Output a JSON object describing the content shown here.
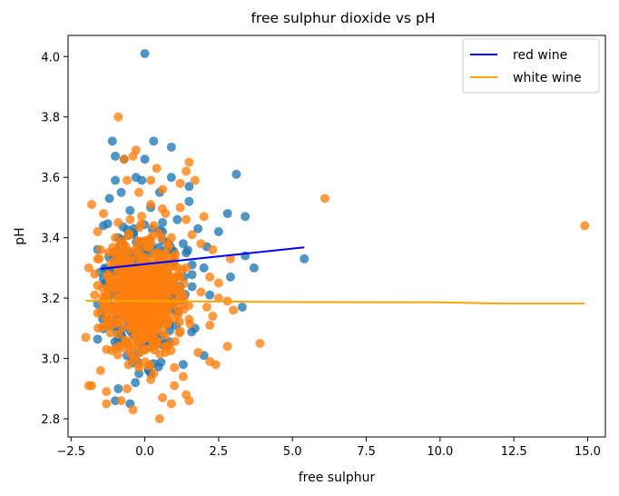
{
  "chart_data": {
    "type": "scatter",
    "title": "free sulphur dioxide vs pH",
    "xlabel": "free sulphur",
    "ylabel": "pH",
    "xlim": [
      -2.6,
      15.6
    ],
    "ylim": [
      2.74,
      4.07
    ],
    "xticks": [
      -2.5,
      0.0,
      2.5,
      5.0,
      7.5,
      10.0,
      12.5,
      15.0
    ],
    "xtick_labels": [
      "−2.5",
      "0.0",
      "2.5",
      "5.0",
      "7.5",
      "10.0",
      "12.5",
      "15.0"
    ],
    "yticks": [
      2.8,
      3.0,
      3.2,
      3.4,
      3.6,
      3.8,
      4.0
    ],
    "ytick_labels": [
      "2.8",
      "3.0",
      "3.2",
      "3.4",
      "3.6",
      "3.8",
      "4.0"
    ],
    "grid": false,
    "legend_position": "top-right",
    "scatter_series": [
      {
        "color": "#1f77b4",
        "points": [
          [
            0.0,
            4.01
          ],
          [
            0.3,
            3.72
          ],
          [
            -1.1,
            3.72
          ],
          [
            -1.0,
            3.67
          ],
          [
            -0.7,
            3.66
          ],
          [
            0.0,
            3.66
          ],
          [
            0.9,
            3.7
          ],
          [
            3.1,
            3.61
          ],
          [
            -0.3,
            3.6
          ],
          [
            -0.1,
            3.59
          ],
          [
            -1.0,
            3.59
          ],
          [
            1.5,
            3.57
          ],
          [
            0.9,
            3.6
          ],
          [
            -0.8,
            3.55
          ],
          [
            0.5,
            3.55
          ],
          [
            -1.2,
            3.53
          ],
          [
            1.5,
            3.52
          ],
          [
            0.2,
            3.5
          ],
          [
            -0.5,
            3.49
          ],
          [
            2.8,
            3.48
          ],
          [
            3.4,
            3.47
          ],
          [
            1.1,
            3.46
          ],
          [
            -1.4,
            3.44
          ],
          [
            1.8,
            3.43
          ],
          [
            0.6,
            3.42
          ],
          [
            2.5,
            3.42
          ],
          [
            -0.9,
            3.4
          ],
          [
            1.3,
            3.38
          ],
          [
            2.1,
            3.37
          ],
          [
            3.4,
            3.34
          ],
          [
            5.4,
            3.33
          ],
          [
            -0.2,
            3.33
          ],
          [
            1.6,
            3.31
          ],
          [
            2.0,
            3.3
          ],
          [
            3.7,
            3.3
          ],
          [
            2.9,
            3.27
          ],
          [
            0.8,
            3.26
          ],
          [
            -1.3,
            3.25
          ],
          [
            1.2,
            3.24
          ],
          [
            0.1,
            3.22
          ],
          [
            2.2,
            3.21
          ],
          [
            -0.6,
            3.2
          ],
          [
            3.3,
            3.17
          ],
          [
            1.0,
            3.16
          ],
          [
            -1.0,
            3.13
          ],
          [
            0.4,
            3.12
          ],
          [
            1.7,
            3.1
          ],
          [
            -0.4,
            3.08
          ],
          [
            0.7,
            3.05
          ],
          [
            2.0,
            3.01
          ],
          [
            1.3,
            2.98
          ],
          [
            -0.2,
            2.95
          ],
          [
            -0.9,
            2.9
          ],
          [
            -1.0,
            2.86
          ],
          [
            -0.5,
            2.85
          ],
          [
            0.2,
            2.95
          ],
          [
            -0.8,
            3.35
          ],
          [
            0.6,
            3.45
          ],
          [
            -0.3,
            3.28
          ],
          [
            1.4,
            3.35
          ]
        ]
      },
      {
        "color": "#ff7f0e",
        "points": [
          [
            -0.9,
            3.8
          ],
          [
            -0.3,
            3.69
          ],
          [
            -0.4,
            3.67
          ],
          [
            -0.7,
            3.66
          ],
          [
            0.4,
            3.63
          ],
          [
            1.4,
            3.62
          ],
          [
            1.5,
            3.65
          ],
          [
            0.2,
            3.59
          ],
          [
            -0.6,
            3.59
          ],
          [
            1.7,
            3.59
          ],
          [
            1.2,
            3.58
          ],
          [
            0.6,
            3.56
          ],
          [
            -0.2,
            3.55
          ],
          [
            6.1,
            3.53
          ],
          [
            -1.8,
            3.51
          ],
          [
            0.2,
            3.51
          ],
          [
            1.2,
            3.5
          ],
          [
            0.7,
            3.48
          ],
          [
            -1.4,
            3.48
          ],
          [
            2.0,
            3.47
          ],
          [
            1.4,
            3.46
          ],
          [
            -0.5,
            3.46
          ],
          [
            0.3,
            3.44
          ],
          [
            14.9,
            3.44
          ],
          [
            -1.6,
            3.42
          ],
          [
            1.6,
            3.41
          ],
          [
            0.9,
            3.4
          ],
          [
            -1.0,
            3.4
          ],
          [
            0.0,
            3.39
          ],
          [
            1.9,
            3.38
          ],
          [
            2.3,
            3.36
          ],
          [
            -1.5,
            3.36
          ],
          [
            0.4,
            3.35
          ],
          [
            2.9,
            3.33
          ],
          [
            1.0,
            3.33
          ],
          [
            -0.6,
            3.32
          ],
          [
            -1.9,
            3.3
          ],
          [
            1.4,
            3.3
          ],
          [
            -1.7,
            3.28
          ],
          [
            0.6,
            3.28
          ],
          [
            2.2,
            3.27
          ],
          [
            -1.2,
            3.26
          ],
          [
            2.5,
            3.25
          ],
          [
            0.9,
            3.24
          ],
          [
            -0.2,
            3.23
          ],
          [
            1.9,
            3.22
          ],
          [
            -1.7,
            3.21
          ],
          [
            2.5,
            3.2
          ],
          [
            2.8,
            3.19
          ],
          [
            -0.8,
            3.18
          ],
          [
            1.3,
            3.18
          ],
          [
            2.1,
            3.17
          ],
          [
            3.0,
            3.16
          ],
          [
            -1.6,
            3.15
          ],
          [
            0.5,
            3.15
          ],
          [
            2.3,
            3.14
          ],
          [
            1.5,
            3.13
          ],
          [
            -2.0,
            3.07
          ],
          [
            -1.2,
            3.12
          ],
          [
            2.2,
            3.11
          ],
          [
            0.1,
            3.1
          ],
          [
            1.2,
            3.09
          ],
          [
            -0.9,
            3.08
          ],
          [
            3.9,
            3.05
          ],
          [
            2.8,
            3.04
          ],
          [
            -1.3,
            3.03
          ],
          [
            1.8,
            3.02
          ],
          [
            0.7,
            3.02
          ],
          [
            -0.4,
            3.0
          ],
          [
            2.2,
            2.99
          ],
          [
            2.4,
            2.98
          ],
          [
            1.0,
            2.97
          ],
          [
            -1.5,
            2.96
          ],
          [
            0.3,
            2.95
          ],
          [
            1.3,
            2.94
          ],
          [
            -1.8,
            2.91
          ],
          [
            -1.9,
            2.91
          ],
          [
            1.0,
            2.91
          ],
          [
            -0.6,
            2.9
          ],
          [
            -1.3,
            2.89
          ],
          [
            1.4,
            2.88
          ],
          [
            0.6,
            2.87
          ],
          [
            -0.8,
            2.86
          ],
          [
            -1.3,
            2.85
          ],
          [
            0.9,
            2.85
          ],
          [
            1.5,
            2.86
          ],
          [
            -0.4,
            2.83
          ],
          [
            0.5,
            2.8
          ],
          [
            0.2,
            2.93
          ],
          [
            -0.2,
            2.97
          ],
          [
            0.8,
            3.37
          ],
          [
            -0.9,
            3.45
          ],
          [
            0.1,
            3.3
          ],
          [
            -0.3,
            3.22
          ],
          [
            0.7,
            3.18
          ],
          [
            -1.1,
            3.14
          ],
          [
            0.3,
            3.05
          ],
          [
            -0.5,
            3.33
          ],
          [
            1.1,
            3.27
          ],
          [
            -1.4,
            3.19
          ]
        ]
      }
    ],
    "cluster": {
      "x_range": [
        -1.6,
        1.6
      ],
      "y_range": [
        2.92,
        3.5
      ],
      "center": [
        -0.1,
        3.21
      ]
    },
    "line_series": [
      {
        "name": "red wine",
        "color": "#0000ff",
        "x": [
          -1.5,
          5.4
        ],
        "y": [
          3.297,
          3.368
        ]
      },
      {
        "name": "white wine",
        "color": "#ffa500",
        "x": [
          -2.0,
          5.0,
          10.0,
          12.0,
          14.9
        ],
        "y": [
          3.191,
          3.187,
          3.186,
          3.182,
          3.182
        ]
      }
    ]
  }
}
